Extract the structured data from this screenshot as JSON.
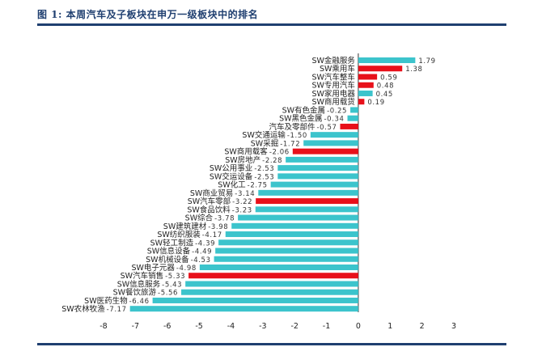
{
  "figure": {
    "title": "图 1: 本周汽车及子板块在申万一级板块中的排名"
  },
  "chart_data": {
    "type": "bar",
    "orientation": "horizontal",
    "categories": [
      "SW金融服务",
      "SW乘用车",
      "SW汽车整车",
      "SW专用汽车",
      "SW家用电器",
      "SW商用载货",
      "SW有色金属",
      "SW黑色金属",
      "汽车及零部件",
      "SW交通运输",
      "SW采掘",
      "SW商用载客",
      "SW房地产",
      "SW公用事业",
      "SW交运设备",
      "SW化工",
      "SW商业贸易",
      "SW汽车零部",
      "SW食品饮料",
      "SW综合",
      "SW建筑建材",
      "SW纺织服装",
      "SW轻工制造",
      "SW信息设备",
      "SW机械设备",
      "SW电子元器",
      "SW汽车销售",
      "SW信息服务",
      "SW餐饮旅游",
      "SW医药生物",
      "SW农林牧渔"
    ],
    "values": [
      1.79,
      1.38,
      0.59,
      0.48,
      0.45,
      0.19,
      -0.25,
      -0.34,
      -0.57,
      -1.5,
      -1.72,
      -2.06,
      -2.28,
      -2.53,
      -2.53,
      -2.75,
      -3.14,
      -3.22,
      -3.23,
      -3.78,
      -3.98,
      -4.17,
      -4.39,
      -4.49,
      -4.53,
      -4.98,
      -5.33,
      -5.43,
      -5.56,
      -6.46,
      -7.17
    ],
    "value_labels": [
      "1.79",
      "1.38",
      "0.59",
      "0.48",
      "0.45",
      "0.19",
      "-0.25",
      "-0.34",
      "-0.57",
      "-1.50",
      "-1.72",
      "-2.06",
      "-2.28",
      "-2.53",
      "-2.53",
      "-2.75",
      "-3.14",
      "-3.22",
      "-3.23",
      "-3.78",
      "-3.98",
      "-4.17",
      "-4.39",
      "-4.49",
      "-4.53",
      "-4.98",
      "-5.33",
      "-5.43",
      "-5.56",
      "-6.46",
      "-7.17"
    ],
    "highlight": [
      false,
      true,
      true,
      true,
      false,
      true,
      false,
      false,
      true,
      false,
      false,
      true,
      false,
      false,
      false,
      false,
      false,
      true,
      false,
      false,
      false,
      false,
      false,
      false,
      false,
      false,
      true,
      false,
      false,
      false,
      false
    ],
    "colors": {
      "default": "#3cc4cc",
      "highlight": "#e8101a",
      "axis": "#333333",
      "panel_bg": "#ffffff"
    },
    "xlim": [
      -8,
      3
    ],
    "xticks": [
      -8,
      -7,
      -6,
      -5,
      -4,
      -3,
      -2,
      -1,
      0,
      1,
      2,
      3
    ],
    "xtick_labels": [
      "-8",
      "-7",
      "-6",
      "-5",
      "-4",
      "-3",
      "-2",
      "-1",
      "0",
      "1",
      "2",
      "3"
    ],
    "title": "",
    "xlabel": "",
    "ylabel": "",
    "grid": false
  }
}
